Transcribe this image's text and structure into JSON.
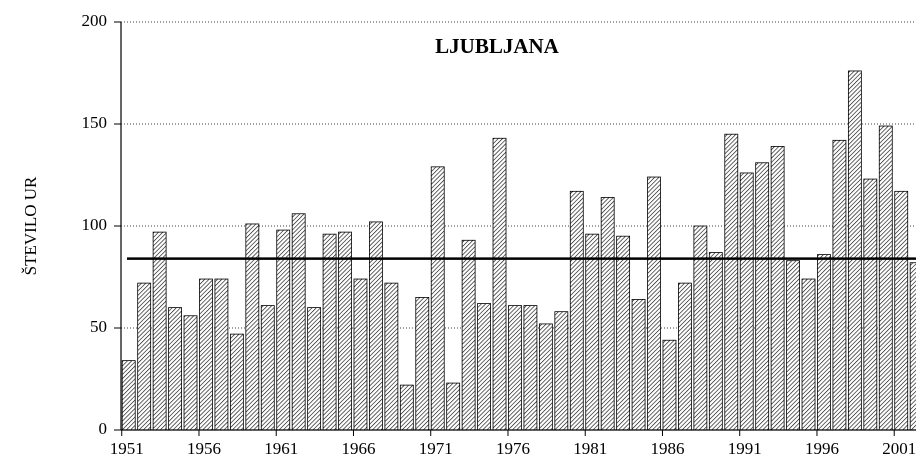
{
  "chart_data": {
    "type": "bar",
    "title": "LJUBLJANA",
    "y_label": "ŠTEVILO UR",
    "categories": [
      "1951",
      null,
      null,
      null,
      null,
      "1956",
      null,
      null,
      null,
      null,
      "1961",
      null,
      null,
      null,
      null,
      "1966",
      null,
      null,
      null,
      null,
      "1971",
      null,
      null,
      null,
      null,
      "1976",
      null,
      null,
      null,
      null,
      "1981",
      null,
      null,
      null,
      null,
      "1986",
      null,
      null,
      null,
      null,
      "1991",
      null,
      null,
      null,
      null,
      "1996",
      null,
      null,
      null,
      null,
      "2001",
      null
    ],
    "values": [
      34,
      72,
      97,
      60,
      56,
      74,
      74,
      47,
      101,
      61,
      98,
      106,
      60,
      96,
      97,
      74,
      102,
      72,
      22,
      65,
      129,
      23,
      93,
      62,
      143,
      61,
      61,
      52,
      58,
      117,
      96,
      114,
      95,
      64,
      124,
      44,
      72,
      100,
      87,
      145,
      126,
      131,
      139,
      83,
      74,
      86,
      142,
      176,
      123,
      149,
      117,
      82
    ],
    "color": "#000000",
    "hline": 84,
    "ylim": [
      0,
      200
    ],
    "yticks": [
      0,
      50,
      100,
      150,
      200
    ],
    "grid": true
  }
}
